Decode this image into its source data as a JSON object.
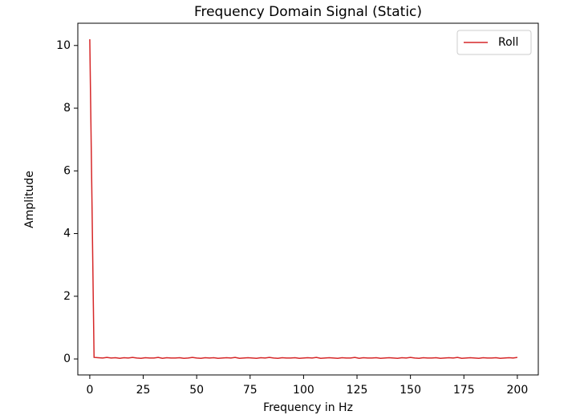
{
  "chart_data": {
    "type": "line",
    "title": "Frequency Domain Signal (Static)",
    "x_label": "Frequency in Hz",
    "y_label": "Amplitude",
    "x": [
      0,
      2,
      4,
      6,
      8,
      10,
      12,
      14,
      16,
      18,
      20,
      22,
      24,
      26,
      28,
      30,
      32,
      34,
      36,
      38,
      40,
      42,
      44,
      46,
      48,
      50,
      52,
      54,
      56,
      58,
      60,
      62,
      64,
      66,
      68,
      70,
      72,
      74,
      76,
      78,
      80,
      82,
      84,
      86,
      88,
      90,
      92,
      94,
      96,
      98,
      100,
      102,
      104,
      106,
      108,
      110,
      112,
      114,
      116,
      118,
      120,
      122,
      124,
      126,
      128,
      130,
      132,
      134,
      136,
      138,
      140,
      142,
      144,
      146,
      148,
      150,
      152,
      154,
      156,
      158,
      160,
      162,
      164,
      166,
      168,
      170,
      172,
      174,
      176,
      178,
      180,
      182,
      184,
      186,
      188,
      190,
      192,
      194,
      196,
      198,
      200
    ],
    "series": [
      {
        "name": "Roll",
        "color": "#d62728",
        "values": [
          10.2,
          0.05,
          0.04,
          0.03,
          0.05,
          0.03,
          0.04,
          0.02,
          0.04,
          0.03,
          0.05,
          0.03,
          0.02,
          0.04,
          0.03,
          0.03,
          0.05,
          0.02,
          0.04,
          0.03,
          0.03,
          0.04,
          0.02,
          0.03,
          0.05,
          0.03,
          0.02,
          0.04,
          0.03,
          0.04,
          0.02,
          0.03,
          0.04,
          0.03,
          0.05,
          0.02,
          0.03,
          0.04,
          0.03,
          0.02,
          0.04,
          0.03,
          0.05,
          0.03,
          0.02,
          0.04,
          0.03,
          0.03,
          0.04,
          0.02,
          0.03,
          0.04,
          0.03,
          0.05,
          0.02,
          0.03,
          0.04,
          0.03,
          0.02,
          0.04,
          0.03,
          0.03,
          0.05,
          0.02,
          0.04,
          0.03,
          0.03,
          0.04,
          0.02,
          0.03,
          0.04,
          0.03,
          0.02,
          0.04,
          0.03,
          0.05,
          0.03,
          0.02,
          0.04,
          0.03,
          0.03,
          0.04,
          0.02,
          0.03,
          0.04,
          0.03,
          0.05,
          0.02,
          0.03,
          0.04,
          0.03,
          0.02,
          0.04,
          0.03,
          0.03,
          0.04,
          0.02,
          0.03,
          0.04,
          0.03,
          0.05
        ]
      }
    ],
    "xlim": [
      -5.6,
      209.8
    ],
    "ylim": [
      -0.51,
      10.71
    ],
    "xticks": [
      0,
      25,
      50,
      75,
      100,
      125,
      150,
      175,
      200
    ],
    "yticks": [
      0,
      2,
      4,
      6,
      8,
      10
    ],
    "legend": "upper right"
  }
}
